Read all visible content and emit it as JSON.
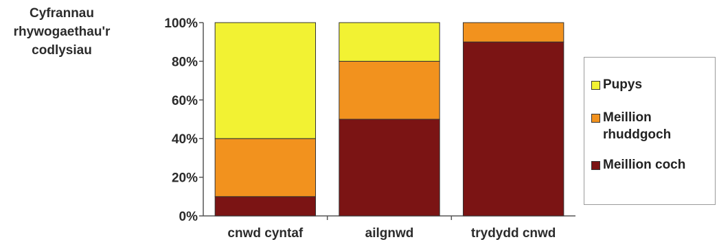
{
  "chart_data": {
    "type": "bar",
    "stacked": true,
    "ylabel": "Cyfrannau\nrhywogaethau'r\ncodlysiau",
    "yticks": [
      "0%",
      "20%",
      "40%",
      "60%",
      "80%",
      "100%"
    ],
    "ylim": [
      0,
      100
    ],
    "grid": false,
    "legend_position": "right",
    "categories": [
      "cnwd cyntaf",
      "ailgnwd",
      "trydydd cnwd"
    ],
    "series": [
      {
        "name": "Meillion coch",
        "color": "#7b1414",
        "values": [
          10,
          50,
          90
        ]
      },
      {
        "name": "Meillion\nrhuddgoch",
        "color": "#f2921e",
        "values": [
          30,
          30,
          10
        ]
      },
      {
        "name": "Pupys",
        "color": "#f2f233",
        "values": [
          60,
          20,
          0
        ]
      }
    ],
    "legend_order": [
      2,
      1,
      0
    ]
  }
}
